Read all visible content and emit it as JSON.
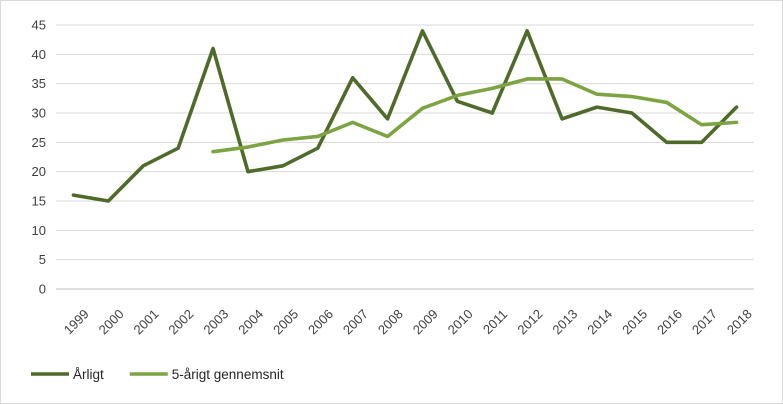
{
  "chart_data": {
    "type": "line",
    "title": "",
    "xlabel": "",
    "ylabel": "",
    "ylim": [
      0,
      45
    ],
    "yticks": [
      0,
      5,
      10,
      15,
      20,
      25,
      30,
      35,
      40,
      45
    ],
    "grid": "horizontal",
    "legend_position": "bottom-left",
    "categories": [
      "1999",
      "2000",
      "2001",
      "2002",
      "2003",
      "2004",
      "2005",
      "2006",
      "2007",
      "2008",
      "2009",
      "2010",
      "2011",
      "2012",
      "2013",
      "2014",
      "2015",
      "2016",
      "2017",
      "2018"
    ],
    "series": [
      {
        "name": "Årligt",
        "color": "#4e6b2a",
        "values": [
          16,
          15,
          21,
          24,
          41,
          20,
          21,
          24,
          36,
          29,
          44,
          32,
          30,
          44,
          29,
          31,
          30,
          25,
          25,
          31
        ]
      },
      {
        "name": "5-årigt gennemsnit",
        "color": "#7da443",
        "values": [
          null,
          null,
          null,
          null,
          23.4,
          24.2,
          25.4,
          26,
          28.4,
          26,
          30.8,
          33,
          34.2,
          35.8,
          35.8,
          33.2,
          32.8,
          31.8,
          28,
          28.4
        ]
      }
    ]
  }
}
